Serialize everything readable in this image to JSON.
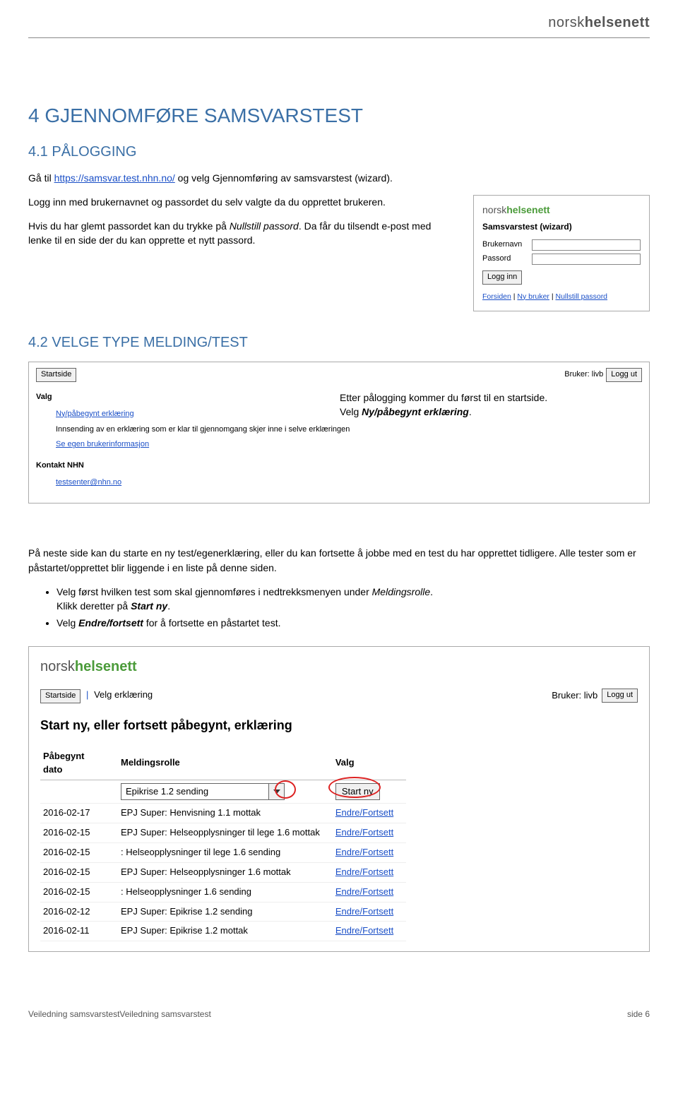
{
  "brand": {
    "part1": "norsk",
    "part2": "helsenett"
  },
  "h1": "4  GJENNOMFØRE SAMSVARSTEST",
  "h2_41": "4.1   PÅLOGGING",
  "p41_pre": "Gå til ",
  "p41_link": "https://samsvar.test.nhn.no/",
  "p41_post": " og velg Gjennomføring av samsvarstest (wizard).",
  "p41b": "Logg inn med brukernavnet og passordet du selv valgte da du opprettet brukeren.",
  "p41c_pre": "Hvis du har glemt passordet kan du trykke på ",
  "p41c_it": "Nullstill passord",
  "p41c_post": ". Da får du tilsendt e-post med lenke til en side der du kan opprette et nytt passord.",
  "login": {
    "title": "Samsvarstest (wizard)",
    "user_label": "Brukernavn",
    "pass_label": "Passord",
    "btn": "Logg inn",
    "link1": "Forsiden",
    "link2": "Ny bruker",
    "link3": "Nullstill passord"
  },
  "h2_42": "4.2   VELGE TYPE MELDING/TEST",
  "valg": {
    "startside": "Startside",
    "bruker_label": "Bruker: livb",
    "loggut": "Logg ut",
    "valg_title": "Valg",
    "link_ny": "Ny/påbegynt erklæring",
    "text_inns": "Innsending av en erklæring som er klar til gjennomgang skjer inne i selve erklæringen",
    "link_se": "Se egen brukerinformasjon",
    "kontakt_title": "Kontakt NHN",
    "email": "testsenter@nhn.no",
    "caption1": "Etter pålogging kommer du først til en startside.",
    "caption2_pre": "Velg ",
    "caption2_bi": "Ny/påbegynt erklæring",
    "caption2_post": "."
  },
  "p42a": "På neste side kan du starte en ny test/egenerklæring, eller du kan fortsette å jobbe med en test du har opprettet tidligere. Alle tester som er påstartet/opprettet blir liggende i en liste på denne siden.",
  "bul1_pre": "Velg først hvilken test som skal gjennomføres i nedtrekksmenyen under ",
  "bul1_it": "Meldingsrolle",
  "bul1_post": ".",
  "bul2_pre": "Klikk deretter på ",
  "bul2_bi": "Start ny",
  "bul2_post": ".",
  "bul3_pre": "Velg ",
  "bul3_bi": "Endre/fortsett",
  "bul3_post": " for å fortsette en påstartet test.",
  "erk": {
    "nav_start": "Startside",
    "nav_sep": "|",
    "nav_velg": "Velg erklæring",
    "bruker_label": "Bruker: livb",
    "loggut": "Logg ut",
    "heading": "Start ny, eller fortsett påbegynt, erklæring",
    "col1": "Påbegynt dato",
    "col2": "Meldingsrolle",
    "col3": "Valg",
    "select_value": "Epikrise 1.2 sending",
    "start_ny": "Start ny",
    "rows": [
      {
        "date": "2016-02-17",
        "role": "EPJ Super: Henvisning 1.1 mottak",
        "action": "Endre/Fortsett"
      },
      {
        "date": "2016-02-15",
        "role": "EPJ Super: Helseopplysninger til lege 1.6 mottak",
        "action": "Endre/Fortsett"
      },
      {
        "date": "2016-02-15",
        "role": ": Helseopplysninger til lege 1.6 sending",
        "action": "Endre/Fortsett"
      },
      {
        "date": "2016-02-15",
        "role": "EPJ Super: Helseopplysninger 1.6 mottak",
        "action": "Endre/Fortsett"
      },
      {
        "date": "2016-02-15",
        "role": ": Helseopplysninger 1.6 sending",
        "action": "Endre/Fortsett"
      },
      {
        "date": "2016-02-12",
        "role": "EPJ Super: Epikrise 1.2 sending",
        "action": "Endre/Fortsett"
      },
      {
        "date": "2016-02-11",
        "role": "EPJ Super: Epikrise 1.2 mottak",
        "action": "Endre/Fortsett"
      }
    ]
  },
  "footer_left": "Veiledning samsvarstestVeiledning samsvarstest",
  "footer_right": "side 6"
}
